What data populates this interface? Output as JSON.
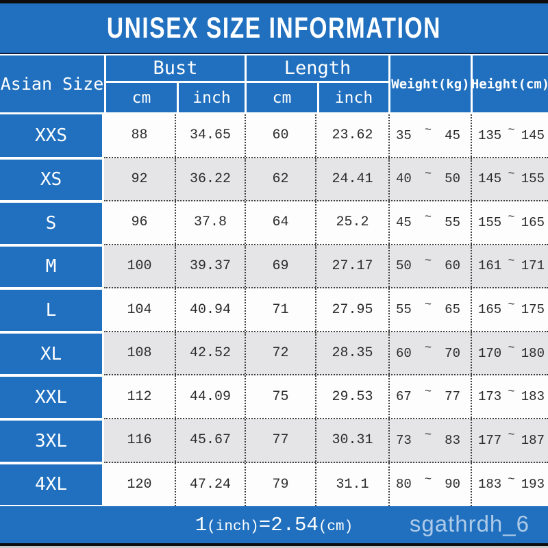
{
  "title": "UNISEX SIZE INFORMATION",
  "table": {
    "size_header": "Asian Size",
    "groups": [
      {
        "label": "Bust",
        "sub": [
          "cm",
          "inch"
        ]
      },
      {
        "label": "Length",
        "sub": [
          "cm",
          "inch"
        ]
      }
    ],
    "weight_header": "Weight(kg)",
    "height_header": "Height(cm)",
    "tilde": "~",
    "rows": [
      {
        "size": "XXS",
        "bust_cm": "88",
        "bust_inch": "34.65",
        "length_cm": "60",
        "length_inch": "23.62",
        "weight_min": "35",
        "weight_max": "45",
        "height_min": "135",
        "height_max": "145"
      },
      {
        "size": "XS",
        "bust_cm": "92",
        "bust_inch": "36.22",
        "length_cm": "62",
        "length_inch": "24.41",
        "weight_min": "40",
        "weight_max": "50",
        "height_min": "145",
        "height_max": "155"
      },
      {
        "size": "S",
        "bust_cm": "96",
        "bust_inch": "37.8",
        "length_cm": "64",
        "length_inch": "25.2",
        "weight_min": "45",
        "weight_max": "55",
        "height_min": "155",
        "height_max": "165"
      },
      {
        "size": "M",
        "bust_cm": "100",
        "bust_inch": "39.37",
        "length_cm": "69",
        "length_inch": "27.17",
        "weight_min": "50",
        "weight_max": "60",
        "height_min": "161",
        "height_max": "171"
      },
      {
        "size": "L",
        "bust_cm": "104",
        "bust_inch": "40.94",
        "length_cm": "71",
        "length_inch": "27.95",
        "weight_min": "55",
        "weight_max": "65",
        "height_min": "165",
        "height_max": "175"
      },
      {
        "size": "XL",
        "bust_cm": "108",
        "bust_inch": "42.52",
        "length_cm": "72",
        "length_inch": "28.35",
        "weight_min": "60",
        "weight_max": "70",
        "height_min": "170",
        "height_max": "180"
      },
      {
        "size": "XXL",
        "bust_cm": "112",
        "bust_inch": "44.09",
        "length_cm": "75",
        "length_inch": "29.53",
        "weight_min": "67",
        "weight_max": "77",
        "height_min": "173",
        "height_max": "183"
      },
      {
        "size": "3XL",
        "bust_cm": "116",
        "bust_inch": "45.67",
        "length_cm": "77",
        "length_inch": "30.31",
        "weight_min": "73",
        "weight_max": "83",
        "height_min": "177",
        "height_max": "187"
      },
      {
        "size": "4XL",
        "bust_cm": "120",
        "bust_inch": "47.24",
        "length_cm": "79",
        "length_inch": "31.1",
        "weight_min": "80",
        "weight_max": "90",
        "height_min": "183",
        "height_max": "193"
      }
    ]
  },
  "footer": {
    "note_parts": [
      "1",
      "(inch)",
      "=",
      "2.54",
      "(cm)"
    ],
    "watermark": "sgathrdh_6"
  },
  "colors": {
    "brand_blue": "#2070bf",
    "bar_black": "#0d0d0d",
    "row_white": "#fdfdfd",
    "row_alt_gray": "#e5e5e7",
    "dotted_border": "#3f3f3f",
    "header_text": "#ffffff",
    "data_text": "#2b2b2b"
  }
}
